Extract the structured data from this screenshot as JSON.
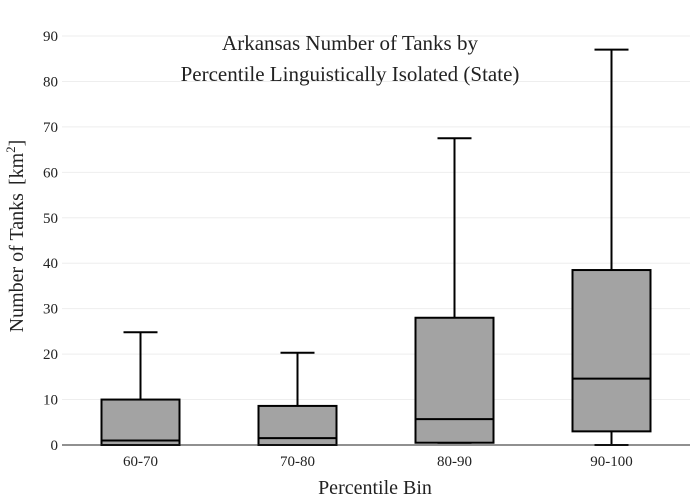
{
  "chart_data": {
    "type": "box",
    "title_lines": [
      "Arkansas Number of Tanks by",
      "Percentile Linguistically Isolated (State)"
    ],
    "xlabel": "Percentile Bin",
    "ylabel": "Number of Tanks",
    "ylabel_unit_base": "[km",
    "ylabel_unit_sup": "2",
    "ylabel_unit_close": "]",
    "ylim": [
      0,
      90
    ],
    "yticks": [
      0,
      10,
      20,
      30,
      40,
      50,
      60,
      70,
      80,
      90
    ],
    "grid": true,
    "categories": [
      "60-70",
      "70-80",
      "80-90",
      "90-100"
    ],
    "boxes": [
      {
        "category": "60-70",
        "min": 0,
        "q1": 0,
        "median": 1,
        "q3": 10,
        "max": 24.8
      },
      {
        "category": "70-80",
        "min": 0,
        "q1": 0,
        "median": 1.5,
        "q3": 8.6,
        "max": 20.3
      },
      {
        "category": "80-90",
        "min": 0.5,
        "q1": 0.5,
        "median": 5.7,
        "q3": 28,
        "max": 67.5
      },
      {
        "category": "90-100",
        "min": 0,
        "q1": 3,
        "median": 14.6,
        "q3": 38.5,
        "max": 87
      }
    ],
    "box_fill": "#a3a3a3",
    "line_color": "#000000"
  }
}
